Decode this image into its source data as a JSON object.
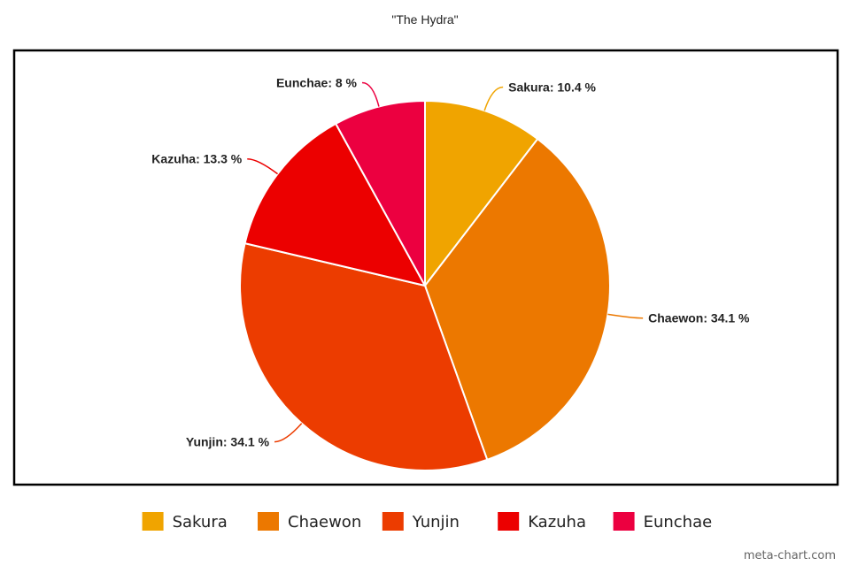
{
  "chart_data": {
    "type": "pie",
    "title": "\"The Hydra\"",
    "slices": [
      {
        "name": "Sakura",
        "value": 10.4,
        "label": "Sakura: 10.4 %",
        "color": "#F0A400"
      },
      {
        "name": "Chaewon",
        "value": 34.1,
        "label": "Chaewon: 34.1 %",
        "color": "#EC7800"
      },
      {
        "name": "Yunjin",
        "value": 34.1,
        "label": "Yunjin: 34.1 %",
        "color": "#EC3C00"
      },
      {
        "name": "Kazuha",
        "value": 13.3,
        "label": "Kazuha: 13.3 %",
        "color": "#EC0000"
      },
      {
        "name": "Eunchae",
        "value": 8,
        "label": "Eunchae: 8 %",
        "color": "#EC0040"
      }
    ],
    "legend_position": "bottom",
    "start_angle": "top",
    "direction": "clockwise"
  },
  "credit": "meta-chart.com"
}
